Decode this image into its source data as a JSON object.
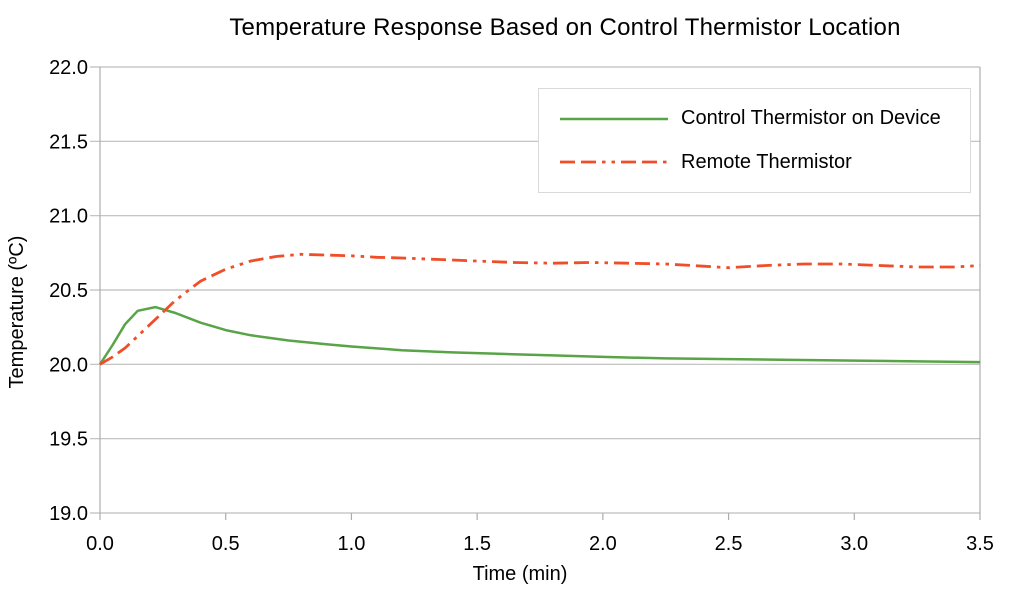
{
  "chart_data": {
    "type": "line",
    "title": "Temperature Response Based on Control Thermistor Location",
    "xlabel": "Time (min)",
    "ylabel": "Temperature (ºC)",
    "xlim": [
      0,
      3.5
    ],
    "ylim": [
      19.0,
      22.0
    ],
    "xticks": {
      "values": [
        0,
        0.5,
        1.0,
        1.5,
        2.0,
        2.5,
        3.0,
        3.5
      ],
      "labels": [
        "0.0",
        "0.5",
        "1.0",
        "1.5",
        "2.0",
        "2.5",
        "3.0",
        "3.5"
      ]
    },
    "yticks": {
      "values": [
        19.0,
        19.5,
        20.0,
        20.5,
        21.0,
        21.5,
        22.0
      ],
      "labels": [
        "19.0",
        "19.5",
        "20.0",
        "20.5",
        "21.0",
        "21.5",
        "22.0"
      ]
    },
    "grid": "horizontal-only",
    "grid_color": "#bdbdbd",
    "axis_color": "#adadad",
    "legend": {
      "position": "top-right",
      "border_color": "#d9d9d9"
    },
    "series": [
      {
        "name": "Control Thermistor on Device",
        "color": "#58a447",
        "line_style": "solid",
        "dash": "",
        "width": 2.5,
        "points": [
          [
            0.0,
            20.0
          ],
          [
            0.05,
            20.13
          ],
          [
            0.1,
            20.27
          ],
          [
            0.15,
            20.36
          ],
          [
            0.22,
            20.385
          ],
          [
            0.3,
            20.345
          ],
          [
            0.4,
            20.28
          ],
          [
            0.5,
            20.23
          ],
          [
            0.6,
            20.195
          ],
          [
            0.75,
            20.16
          ],
          [
            0.9,
            20.135
          ],
          [
            1.0,
            20.12
          ],
          [
            1.2,
            20.095
          ],
          [
            1.4,
            20.08
          ],
          [
            1.6,
            20.07
          ],
          [
            1.8,
            20.06
          ],
          [
            2.0,
            20.05
          ],
          [
            2.25,
            20.04
          ],
          [
            2.5,
            20.035
          ],
          [
            2.75,
            20.03
          ],
          [
            3.0,
            20.025
          ],
          [
            3.25,
            20.02
          ],
          [
            3.5,
            20.015
          ]
        ]
      },
      {
        "name": "Remote Thermistor",
        "color": "#f04e28",
        "line_style": "long-dash-dash-dot-dot",
        "dash": "15 6 15 6 3.5 6 3.5 6",
        "width": 2.8,
        "points": [
          [
            0.0,
            20.0
          ],
          [
            0.05,
            20.05
          ],
          [
            0.1,
            20.11
          ],
          [
            0.2,
            20.27
          ],
          [
            0.3,
            20.43
          ],
          [
            0.4,
            20.56
          ],
          [
            0.5,
            20.64
          ],
          [
            0.6,
            20.695
          ],
          [
            0.7,
            20.725
          ],
          [
            0.8,
            20.74
          ],
          [
            0.9,
            20.735
          ],
          [
            1.0,
            20.73
          ],
          [
            1.1,
            20.72
          ],
          [
            1.2,
            20.715
          ],
          [
            1.35,
            20.705
          ],
          [
            1.5,
            20.695
          ],
          [
            1.65,
            20.685
          ],
          [
            1.8,
            20.68
          ],
          [
            1.95,
            20.685
          ],
          [
            2.1,
            20.68
          ],
          [
            2.25,
            20.675
          ],
          [
            2.4,
            20.66
          ],
          [
            2.5,
            20.65
          ],
          [
            2.65,
            20.665
          ],
          [
            2.8,
            20.675
          ],
          [
            2.95,
            20.675
          ],
          [
            3.1,
            20.665
          ],
          [
            3.25,
            20.655
          ],
          [
            3.4,
            20.655
          ],
          [
            3.5,
            20.665
          ]
        ]
      }
    ]
  }
}
